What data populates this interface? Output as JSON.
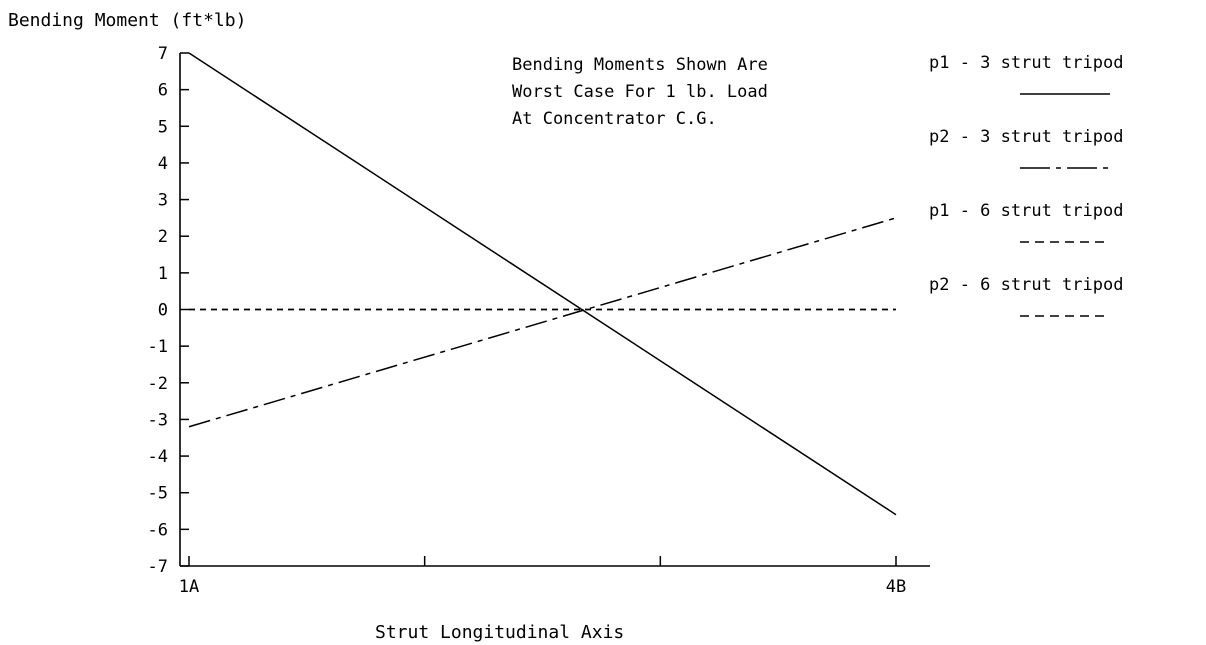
{
  "chart_data": {
    "type": "line",
    "title": "",
    "ylabel": "Bending Moment (ft*lb)",
    "xlabel": "Strut Longitudinal Axis",
    "x_categories": [
      "1A",
      "4B"
    ],
    "ylim": [
      -7,
      7
    ],
    "yticks": [
      7,
      6,
      5,
      4,
      3,
      2,
      1,
      0,
      -1,
      -2,
      -3,
      -4,
      -5,
      -6,
      -7
    ],
    "yticks_labels": [
      "7",
      "6",
      "5",
      "4",
      "3",
      "2",
      "1",
      "0",
      "-1",
      "-2",
      "-3",
      "-4",
      "-5",
      "-6",
      "-7"
    ],
    "grid": false,
    "annotation": [
      "Bending Moments Shown Are",
      "Worst Case For 1 lb. Load",
      "At Concentrator C.G."
    ],
    "legend_position": "right",
    "series": [
      {
        "name": "p1 - 3 strut tripod",
        "style": "solid",
        "values": [
          7.0,
          -5.6
        ]
      },
      {
        "name": "p2 - 3 strut tripod",
        "style": "dashdot",
        "values": [
          -3.2,
          2.5
        ]
      },
      {
        "name": "p1 - 6 strut tripod",
        "style": "dashed",
        "values": [
          0.0,
          0.0
        ]
      },
      {
        "name": "p2 - 6 strut tripod",
        "style": "dashed",
        "values": [
          0.0,
          0.0
        ]
      }
    ]
  }
}
